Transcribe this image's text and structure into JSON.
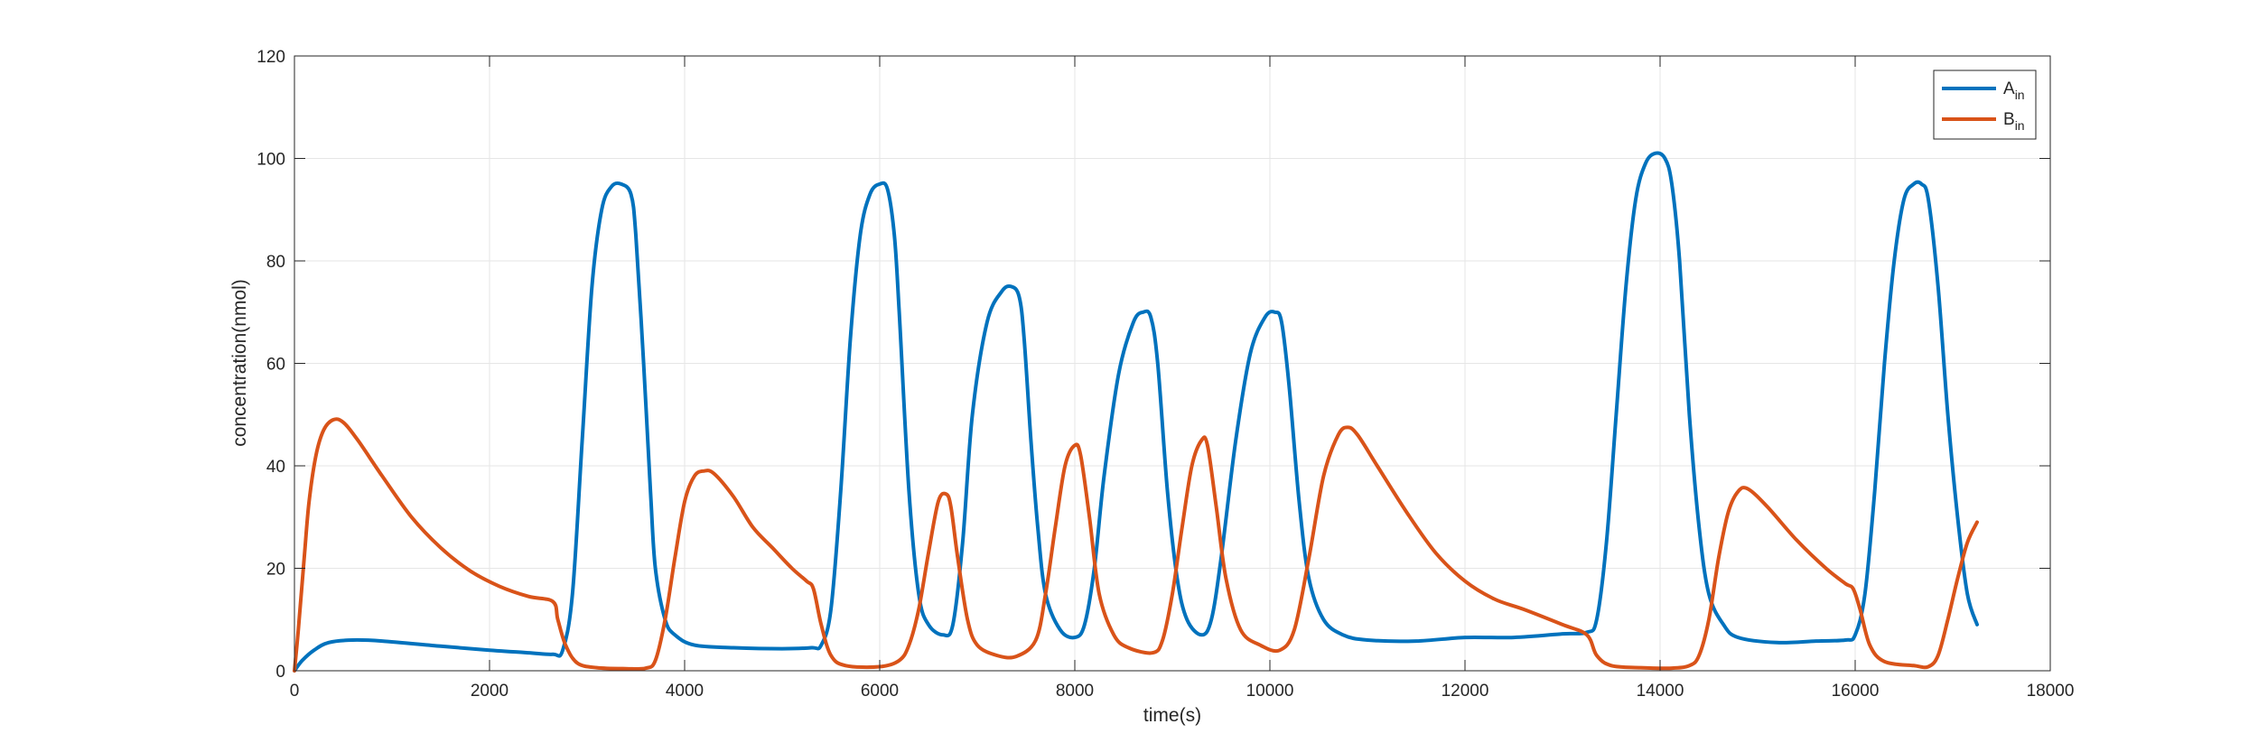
{
  "chart_data": {
    "type": "line",
    "xlabel": "time(s)",
    "ylabel": "concentration(nmol)",
    "xlim": [
      0,
      18000
    ],
    "ylim": [
      0,
      120
    ],
    "xticks": [
      0,
      2000,
      4000,
      6000,
      8000,
      10000,
      12000,
      14000,
      16000,
      18000
    ],
    "yticks": [
      0,
      20,
      40,
      60,
      80,
      100,
      120
    ],
    "grid": true,
    "legend_position": "top-right",
    "series": [
      {
        "name": "A",
        "name_subscript": "in",
        "color": "#0072BD",
        "points": [
          [
            0,
            0
          ],
          [
            80,
            2
          ],
          [
            200,
            4
          ],
          [
            350,
            5.5
          ],
          [
            600,
            6
          ],
          [
            900,
            5.8
          ],
          [
            1500,
            4.8
          ],
          [
            2000,
            4
          ],
          [
            2400,
            3.5
          ],
          [
            2650,
            3.2
          ],
          [
            2750,
            4
          ],
          [
            2850,
            15
          ],
          [
            2950,
            45
          ],
          [
            3050,
            75
          ],
          [
            3150,
            90
          ],
          [
            3250,
            94.5
          ],
          [
            3350,
            95
          ],
          [
            3450,
            93
          ],
          [
            3500,
            85
          ],
          [
            3580,
            60
          ],
          [
            3650,
            35
          ],
          [
            3700,
            20
          ],
          [
            3800,
            10
          ],
          [
            3900,
            7
          ],
          [
            4100,
            5
          ],
          [
            4500,
            4.5
          ],
          [
            5000,
            4.3
          ],
          [
            5300,
            4.5
          ],
          [
            5400,
            5
          ],
          [
            5500,
            12
          ],
          [
            5600,
            35
          ],
          [
            5700,
            65
          ],
          [
            5800,
            85
          ],
          [
            5900,
            93
          ],
          [
            6000,
            95
          ],
          [
            6080,
            94
          ],
          [
            6150,
            85
          ],
          [
            6200,
            70
          ],
          [
            6300,
            35
          ],
          [
            6400,
            15
          ],
          [
            6500,
            9
          ],
          [
            6650,
            7
          ],
          [
            6750,
            9
          ],
          [
            6850,
            25
          ],
          [
            6950,
            50
          ],
          [
            7100,
            68
          ],
          [
            7250,
            74
          ],
          [
            7350,
            75
          ],
          [
            7430,
            73
          ],
          [
            7480,
            65
          ],
          [
            7550,
            45
          ],
          [
            7620,
            28
          ],
          [
            7700,
            15
          ],
          [
            7850,
            8
          ],
          [
            8000,
            6.5
          ],
          [
            8100,
            9
          ],
          [
            8200,
            20
          ],
          [
            8300,
            38
          ],
          [
            8450,
            58
          ],
          [
            8600,
            68
          ],
          [
            8700,
            70
          ],
          [
            8780,
            69
          ],
          [
            8850,
            60
          ],
          [
            8950,
            35
          ],
          [
            9050,
            18
          ],
          [
            9150,
            10
          ],
          [
            9300,
            7
          ],
          [
            9400,
            10
          ],
          [
            9500,
            22
          ],
          [
            9650,
            45
          ],
          [
            9800,
            62
          ],
          [
            9950,
            69
          ],
          [
            10050,
            70
          ],
          [
            10120,
            68
          ],
          [
            10200,
            55
          ],
          [
            10300,
            33
          ],
          [
            10400,
            18
          ],
          [
            10550,
            10
          ],
          [
            10750,
            7
          ],
          [
            11000,
            6
          ],
          [
            11500,
            5.8
          ],
          [
            12000,
            6.5
          ],
          [
            12500,
            6.5
          ],
          [
            13000,
            7.2
          ],
          [
            13250,
            7.5
          ],
          [
            13350,
            10
          ],
          [
            13450,
            25
          ],
          [
            13550,
            50
          ],
          [
            13650,
            75
          ],
          [
            13750,
            92
          ],
          [
            13850,
            99
          ],
          [
            13950,
            101
          ],
          [
            14050,
            100
          ],
          [
            14120,
            95
          ],
          [
            14200,
            80
          ],
          [
            14300,
            50
          ],
          [
            14400,
            28
          ],
          [
            14500,
            15
          ],
          [
            14650,
            9
          ],
          [
            14800,
            6.5
          ],
          [
            15200,
            5.5
          ],
          [
            15600,
            5.8
          ],
          [
            15900,
            6
          ],
          [
            16000,
            7
          ],
          [
            16100,
            15
          ],
          [
            16200,
            35
          ],
          [
            16300,
            60
          ],
          [
            16400,
            80
          ],
          [
            16500,
            92
          ],
          [
            16600,
            95
          ],
          [
            16680,
            95
          ],
          [
            16750,
            92
          ],
          [
            16850,
            75
          ],
          [
            16950,
            50
          ],
          [
            17050,
            30
          ],
          [
            17150,
            15
          ],
          [
            17250,
            9
          ]
        ]
      },
      {
        "name": "B",
        "name_subscript": "in",
        "color": "#D95319",
        "points": [
          [
            0,
            0
          ],
          [
            40,
            8
          ],
          [
            100,
            22
          ],
          [
            150,
            33
          ],
          [
            220,
            42
          ],
          [
            300,
            47
          ],
          [
            400,
            49
          ],
          [
            500,
            48.5
          ],
          [
            650,
            45
          ],
          [
            900,
            38
          ],
          [
            1200,
            30
          ],
          [
            1500,
            24
          ],
          [
            1800,
            19.5
          ],
          [
            2100,
            16.5
          ],
          [
            2400,
            14.5
          ],
          [
            2650,
            13.5
          ],
          [
            2700,
            10
          ],
          [
            2780,
            5
          ],
          [
            2900,
            1.5
          ],
          [
            3100,
            0.6
          ],
          [
            3400,
            0.4
          ],
          [
            3600,
            0.5
          ],
          [
            3700,
            2
          ],
          [
            3800,
            10
          ],
          [
            3900,
            22
          ],
          [
            4000,
            33
          ],
          [
            4100,
            38
          ],
          [
            4200,
            39
          ],
          [
            4300,
            38.5
          ],
          [
            4500,
            34
          ],
          [
            4700,
            28
          ],
          [
            4900,
            24
          ],
          [
            5100,
            20
          ],
          [
            5250,
            17.5
          ],
          [
            5320,
            16
          ],
          [
            5400,
            9
          ],
          [
            5500,
            3
          ],
          [
            5650,
            1
          ],
          [
            6000,
            0.8
          ],
          [
            6200,
            2
          ],
          [
            6300,
            5
          ],
          [
            6400,
            12
          ],
          [
            6500,
            23
          ],
          [
            6600,
            33
          ],
          [
            6680,
            34.5
          ],
          [
            6730,
            32
          ],
          [
            6800,
            22
          ],
          [
            6900,
            10
          ],
          [
            7000,
            5
          ],
          [
            7200,
            3
          ],
          [
            7400,
            2.8
          ],
          [
            7600,
            6
          ],
          [
            7700,
            15
          ],
          [
            7800,
            28
          ],
          [
            7900,
            40
          ],
          [
            8000,
            44
          ],
          [
            8060,
            42
          ],
          [
            8150,
            30
          ],
          [
            8250,
            15
          ],
          [
            8400,
            7
          ],
          [
            8550,
            4.5
          ],
          [
            8800,
            3.5
          ],
          [
            8900,
            6
          ],
          [
            9000,
            15
          ],
          [
            9100,
            28
          ],
          [
            9200,
            40
          ],
          [
            9300,
            45
          ],
          [
            9360,
            44
          ],
          [
            9450,
            32
          ],
          [
            9550,
            18
          ],
          [
            9700,
            8
          ],
          [
            9900,
            5
          ],
          [
            10100,
            4
          ],
          [
            10250,
            8
          ],
          [
            10400,
            22
          ],
          [
            10550,
            38
          ],
          [
            10700,
            46
          ],
          [
            10800,
            47.5
          ],
          [
            10900,
            46
          ],
          [
            11100,
            40
          ],
          [
            11400,
            31
          ],
          [
            11700,
            23
          ],
          [
            12000,
            17.5
          ],
          [
            12300,
            14
          ],
          [
            12600,
            12
          ],
          [
            13000,
            9
          ],
          [
            13250,
            7
          ],
          [
            13350,
            3
          ],
          [
            13500,
            1
          ],
          [
            13800,
            0.6
          ],
          [
            14100,
            0.5
          ],
          [
            14300,
            1
          ],
          [
            14400,
            3
          ],
          [
            14500,
            10
          ],
          [
            14600,
            22
          ],
          [
            14700,
            31
          ],
          [
            14800,
            35
          ],
          [
            14900,
            35.5
          ],
          [
            15100,
            32
          ],
          [
            15400,
            25.5
          ],
          [
            15700,
            20
          ],
          [
            15900,
            17
          ],
          [
            15980,
            16
          ],
          [
            16050,
            12
          ],
          [
            16150,
            5
          ],
          [
            16300,
            1.8
          ],
          [
            16600,
            1
          ],
          [
            16750,
            0.8
          ],
          [
            16850,
            3
          ],
          [
            16950,
            10
          ],
          [
            17050,
            18
          ],
          [
            17150,
            25
          ],
          [
            17250,
            29
          ]
        ]
      }
    ]
  }
}
